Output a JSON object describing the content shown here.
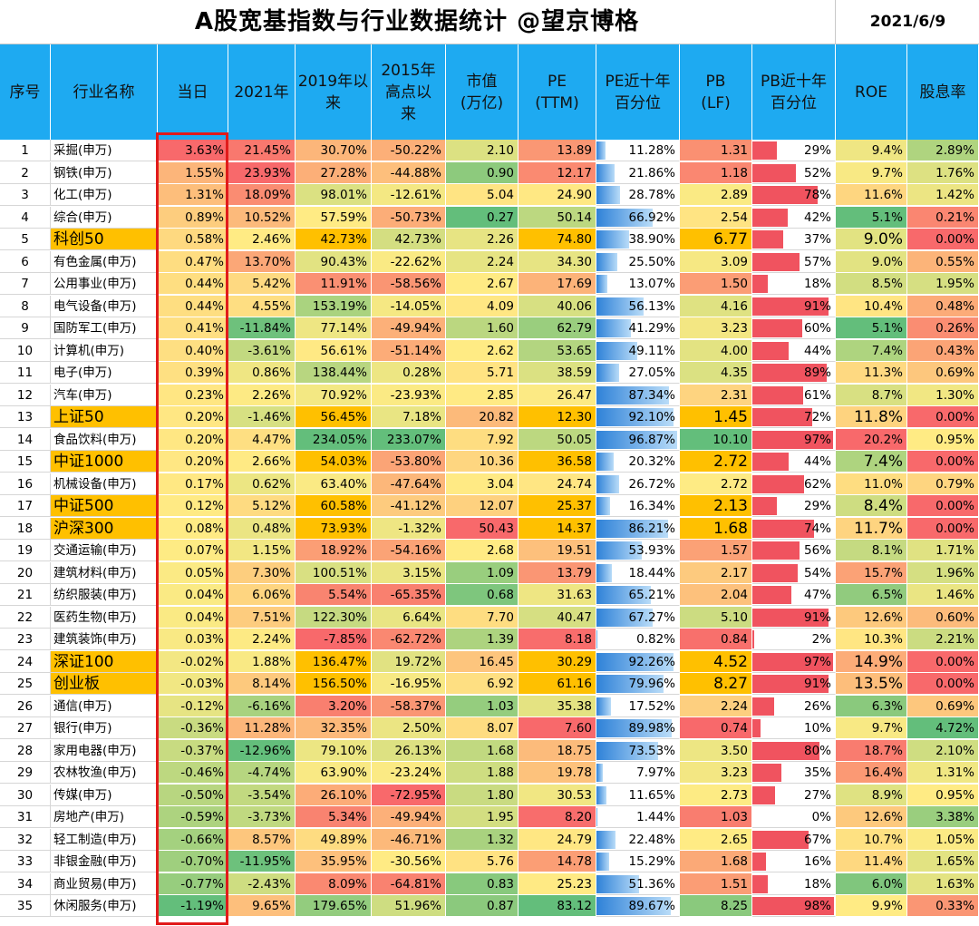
{
  "title": "A股宽基指数与行业数据统计  @望京博格",
  "date": "2021/6/9",
  "headers": [
    "序号",
    "行业名称",
    "当日",
    "2021年",
    "2019年以\n来",
    "2015年\n高点以\n来",
    "市值\n(万亿)",
    "PE\n(TTM)",
    "PE近十年\n百分位",
    "PB\n(LF)",
    "PB近十年\n百分位",
    "ROE",
    "股息率"
  ],
  "colors": {
    "header": "#1eaaf1",
    "index_highlight": "#ffc000",
    "red": "#f8696b",
    "yellow": "#ffeb84",
    "green": "#63be7b",
    "pb_bar": "#f0535f",
    "pe_bar": "#2f82d8",
    "redbox": "#e11b1b"
  },
  "rows": [
    {
      "no": "1",
      "name": "采掘(申万)",
      "day": "3.63%",
      "y2021": "21.45%",
      "s2019": "30.70%",
      "s2015": "-50.22%",
      "mv": "2.10",
      "pe": "13.89",
      "pep": "11.28%",
      "pb": "1.31",
      "pbp": "29%",
      "roe": "9.4%",
      "div": "2.89%"
    },
    {
      "no": "2",
      "name": "钢铁(申万)",
      "day": "1.55%",
      "y2021": "23.93%",
      "s2019": "27.28%",
      "s2015": "-44.88%",
      "mv": "0.90",
      "pe": "12.17",
      "pep": "21.86%",
      "pb": "1.18",
      "pbp": "52%",
      "roe": "9.7%",
      "div": "1.76%"
    },
    {
      "no": "3",
      "name": "化工(申万)",
      "day": "1.31%",
      "y2021": "18.09%",
      "s2019": "98.01%",
      "s2015": "-12.61%",
      "mv": "5.04",
      "pe": "24.90",
      "pep": "28.78%",
      "pb": "2.89",
      "pbp": "78%",
      "roe": "11.6%",
      "div": "1.42%"
    },
    {
      "no": "4",
      "name": "综合(申万)",
      "day": "0.89%",
      "y2021": "10.52%",
      "s2019": "57.59%",
      "s2015": "-50.73%",
      "mv": "0.27",
      "pe": "50.14",
      "pep": "66.92%",
      "pb": "2.54",
      "pbp": "42%",
      "roe": "5.1%",
      "div": "0.21%"
    },
    {
      "no": "5",
      "name": "科创50",
      "idx": true,
      "day": "0.58%",
      "y2021": "2.46%",
      "s2019": "42.73%",
      "s2015": "42.73%",
      "mv": "2.26",
      "pe": "74.80",
      "pep": "38.90%",
      "pb": "6.77",
      "pbp": "37%",
      "roe": "9.0%",
      "div": "0.00%"
    },
    {
      "no": "6",
      "name": "有色金属(申万)",
      "day": "0.47%",
      "y2021": "13.70%",
      "s2019": "90.43%",
      "s2015": "-22.62%",
      "mv": "2.24",
      "pe": "34.30",
      "pep": "25.50%",
      "pb": "3.09",
      "pbp": "57%",
      "roe": "9.0%",
      "div": "0.55%"
    },
    {
      "no": "7",
      "name": "公用事业(申万)",
      "day": "0.44%",
      "y2021": "5.42%",
      "s2019": "11.91%",
      "s2015": "-58.56%",
      "mv": "2.67",
      "pe": "17.69",
      "pep": "13.07%",
      "pb": "1.50",
      "pbp": "18%",
      "roe": "8.5%",
      "div": "1.95%"
    },
    {
      "no": "8",
      "name": "电气设备(申万)",
      "day": "0.44%",
      "y2021": "4.55%",
      "s2019": "153.19%",
      "s2015": "-14.05%",
      "mv": "4.09",
      "pe": "40.06",
      "pep": "56.13%",
      "pb": "4.16",
      "pbp": "91%",
      "roe": "10.4%",
      "div": "0.48%"
    },
    {
      "no": "9",
      "name": "国防军工(申万)",
      "day": "0.41%",
      "y2021": "-11.84%",
      "s2019": "77.14%",
      "s2015": "-49.94%",
      "mv": "1.60",
      "pe": "62.79",
      "pep": "41.29%",
      "pb": "3.23",
      "pbp": "60%",
      "roe": "5.1%",
      "div": "0.26%"
    },
    {
      "no": "10",
      "name": "计算机(申万)",
      "day": "0.40%",
      "y2021": "-3.61%",
      "s2019": "56.61%",
      "s2015": "-51.14%",
      "mv": "2.62",
      "pe": "53.65",
      "pep": "49.11%",
      "pb": "4.00",
      "pbp": "44%",
      "roe": "7.4%",
      "div": "0.43%"
    },
    {
      "no": "11",
      "name": "电子(申万)",
      "day": "0.39%",
      "y2021": "0.86%",
      "s2019": "138.44%",
      "s2015": "0.28%",
      "mv": "5.71",
      "pe": "38.59",
      "pep": "27.05%",
      "pb": "4.35",
      "pbp": "89%",
      "roe": "11.3%",
      "div": "0.69%"
    },
    {
      "no": "12",
      "name": "汽车(申万)",
      "day": "0.23%",
      "y2021": "2.26%",
      "s2019": "70.92%",
      "s2015": "-23.93%",
      "mv": "2.85",
      "pe": "26.47",
      "pep": "87.34%",
      "pb": "2.31",
      "pbp": "61%",
      "roe": "8.7%",
      "div": "1.30%"
    },
    {
      "no": "13",
      "name": "上证50",
      "idx": true,
      "day": "0.20%",
      "y2021": "-1.46%",
      "s2019": "56.45%",
      "s2015": "7.18%",
      "mv": "20.82",
      "pe": "12.30",
      "pep": "92.10%",
      "pb": "1.45",
      "pbp": "72%",
      "roe": "11.8%",
      "div": "0.00%"
    },
    {
      "no": "14",
      "name": "食品饮料(申万)",
      "day": "0.20%",
      "y2021": "4.47%",
      "s2019": "234.05%",
      "s2015": "233.07%",
      "mv": "7.92",
      "pe": "50.05",
      "pep": "96.87%",
      "pb": "10.10",
      "pbp": "97%",
      "roe": "20.2%",
      "div": "0.95%"
    },
    {
      "no": "15",
      "name": "中证1000",
      "idx": true,
      "day": "0.20%",
      "y2021": "2.66%",
      "s2019": "54.03%",
      "s2015": "-53.80%",
      "mv": "10.36",
      "pe": "36.58",
      "pep": "20.32%",
      "pb": "2.72",
      "pbp": "44%",
      "roe": "7.4%",
      "div": "0.00%"
    },
    {
      "no": "16",
      "name": "机械设备(申万)",
      "day": "0.17%",
      "y2021": "0.62%",
      "s2019": "63.40%",
      "s2015": "-47.64%",
      "mv": "3.04",
      "pe": "24.74",
      "pep": "26.72%",
      "pb": "2.72",
      "pbp": "62%",
      "roe": "11.0%",
      "div": "0.79%"
    },
    {
      "no": "17",
      "name": "中证500",
      "idx": true,
      "day": "0.12%",
      "y2021": "5.12%",
      "s2019": "60.58%",
      "s2015": "-41.12%",
      "mv": "12.07",
      "pe": "25.37",
      "pep": "16.34%",
      "pb": "2.13",
      "pbp": "29%",
      "roe": "8.4%",
      "div": "0.00%"
    },
    {
      "no": "18",
      "name": "沪深300",
      "idx": true,
      "day": "0.08%",
      "y2021": "0.48%",
      "s2019": "73.93%",
      "s2015": "-1.32%",
      "mv": "50.43",
      "pe": "14.37",
      "pep": "86.21%",
      "pb": "1.68",
      "pbp": "74%",
      "roe": "11.7%",
      "div": "0.00%"
    },
    {
      "no": "19",
      "name": "交通运输(申万)",
      "day": "0.07%",
      "y2021": "1.15%",
      "s2019": "18.92%",
      "s2015": "-54.16%",
      "mv": "2.68",
      "pe": "19.51",
      "pep": "53.93%",
      "pb": "1.57",
      "pbp": "56%",
      "roe": "8.1%",
      "div": "1.71%"
    },
    {
      "no": "20",
      "name": "建筑材料(申万)",
      "day": "0.05%",
      "y2021": "7.30%",
      "s2019": "100.51%",
      "s2015": "3.15%",
      "mv": "1.09",
      "pe": "13.79",
      "pep": "18.44%",
      "pb": "2.17",
      "pbp": "54%",
      "roe": "15.7%",
      "div": "1.96%"
    },
    {
      "no": "21",
      "name": "纺织服装(申万)",
      "day": "0.04%",
      "y2021": "6.06%",
      "s2019": "5.54%",
      "s2015": "-65.35%",
      "mv": "0.68",
      "pe": "31.63",
      "pep": "65.21%",
      "pb": "2.04",
      "pbp": "47%",
      "roe": "6.5%",
      "div": "1.46%"
    },
    {
      "no": "22",
      "name": "医药生物(申万)",
      "day": "0.04%",
      "y2021": "7.51%",
      "s2019": "122.30%",
      "s2015": "6.64%",
      "mv": "7.70",
      "pe": "40.47",
      "pep": "67.27%",
      "pb": "5.10",
      "pbp": "91%",
      "roe": "12.6%",
      "div": "0.60%"
    },
    {
      "no": "23",
      "name": "建筑装饰(申万)",
      "day": "0.03%",
      "y2021": "2.24%",
      "s2019": "-7.85%",
      "s2015": "-62.72%",
      "mv": "1.39",
      "pe": "8.18",
      "pep": "0.82%",
      "pb": "0.84",
      "pbp": "2%",
      "roe": "10.3%",
      "div": "2.21%"
    },
    {
      "no": "24",
      "name": "深证100",
      "idx": true,
      "day": "-0.02%",
      "y2021": "1.88%",
      "s2019": "136.47%",
      "s2015": "19.72%",
      "mv": "16.45",
      "pe": "30.29",
      "pep": "92.26%",
      "pb": "4.52",
      "pbp": "97%",
      "roe": "14.9%",
      "div": "0.00%"
    },
    {
      "no": "25",
      "name": "创业板",
      "idx": true,
      "day": "-0.03%",
      "y2021": "8.14%",
      "s2019": "156.50%",
      "s2015": "-16.95%",
      "mv": "6.92",
      "pe": "61.16",
      "pep": "79.96%",
      "pb": "8.27",
      "pbp": "91%",
      "roe": "13.5%",
      "div": "0.00%"
    },
    {
      "no": "26",
      "name": "通信(申万)",
      "day": "-0.12%",
      "y2021": "-6.16%",
      "s2019": "3.20%",
      "s2015": "-58.37%",
      "mv": "1.03",
      "pe": "35.38",
      "pep": "17.52%",
      "pb": "2.24",
      "pbp": "26%",
      "roe": "6.3%",
      "div": "0.69%"
    },
    {
      "no": "27",
      "name": "银行(申万)",
      "day": "-0.36%",
      "y2021": "11.28%",
      "s2019": "32.35%",
      "s2015": "2.50%",
      "mv": "8.07",
      "pe": "7.60",
      "pep": "89.98%",
      "pb": "0.74",
      "pbp": "10%",
      "roe": "9.7%",
      "div": "4.72%"
    },
    {
      "no": "28",
      "name": "家用电器(申万)",
      "day": "-0.37%",
      "y2021": "-12.96%",
      "s2019": "79.10%",
      "s2015": "26.13%",
      "mv": "1.68",
      "pe": "18.75",
      "pep": "73.53%",
      "pb": "3.50",
      "pbp": "80%",
      "roe": "18.7%",
      "div": "2.10%"
    },
    {
      "no": "29",
      "name": "农林牧渔(申万)",
      "day": "-0.46%",
      "y2021": "-4.74%",
      "s2019": "63.90%",
      "s2015": "-23.24%",
      "mv": "1.88",
      "pe": "19.78",
      "pep": "7.97%",
      "pb": "3.23",
      "pbp": "35%",
      "roe": "16.4%",
      "div": "1.31%"
    },
    {
      "no": "30",
      "name": "传媒(申万)",
      "day": "-0.50%",
      "y2021": "-3.54%",
      "s2019": "26.10%",
      "s2015": "-72.95%",
      "mv": "1.80",
      "pe": "30.53",
      "pep": "11.65%",
      "pb": "2.73",
      "pbp": "27%",
      "roe": "8.9%",
      "div": "0.95%"
    },
    {
      "no": "31",
      "name": "房地产(申万)",
      "day": "-0.59%",
      "y2021": "-3.73%",
      "s2019": "5.34%",
      "s2015": "-49.94%",
      "mv": "1.95",
      "pe": "8.20",
      "pep": "1.44%",
      "pb": "1.03",
      "pbp": "0%",
      "roe": "12.6%",
      "div": "3.38%"
    },
    {
      "no": "32",
      "name": "轻工制造(申万)",
      "day": "-0.66%",
      "y2021": "8.57%",
      "s2019": "49.89%",
      "s2015": "-46.71%",
      "mv": "1.32",
      "pe": "24.79",
      "pep": "22.48%",
      "pb": "2.65",
      "pbp": "67%",
      "roe": "10.7%",
      "div": "1.05%"
    },
    {
      "no": "33",
      "name": "非银金融(申万)",
      "day": "-0.70%",
      "y2021": "-11.95%",
      "s2019": "35.95%",
      "s2015": "-30.56%",
      "mv": "5.76",
      "pe": "14.78",
      "pep": "15.29%",
      "pb": "1.68",
      "pbp": "16%",
      "roe": "11.4%",
      "div": "1.65%"
    },
    {
      "no": "34",
      "name": "商业贸易(申万)",
      "day": "-0.77%",
      "y2021": "-2.43%",
      "s2019": "8.09%",
      "s2015": "-64.81%",
      "mv": "0.83",
      "pe": "25.23",
      "pep": "51.36%",
      "pb": "1.51",
      "pbp": "18%",
      "roe": "6.0%",
      "div": "1.63%"
    },
    {
      "no": "35",
      "name": "休闲服务(申万)",
      "day": "-1.19%",
      "y2021": "9.65%",
      "s2019": "179.65%",
      "s2015": "51.96%",
      "mv": "0.87",
      "pe": "83.12",
      "pep": "89.67%",
      "pb": "8.25",
      "pbp": "98%",
      "roe": "9.9%",
      "div": "0.33%"
    }
  ]
}
